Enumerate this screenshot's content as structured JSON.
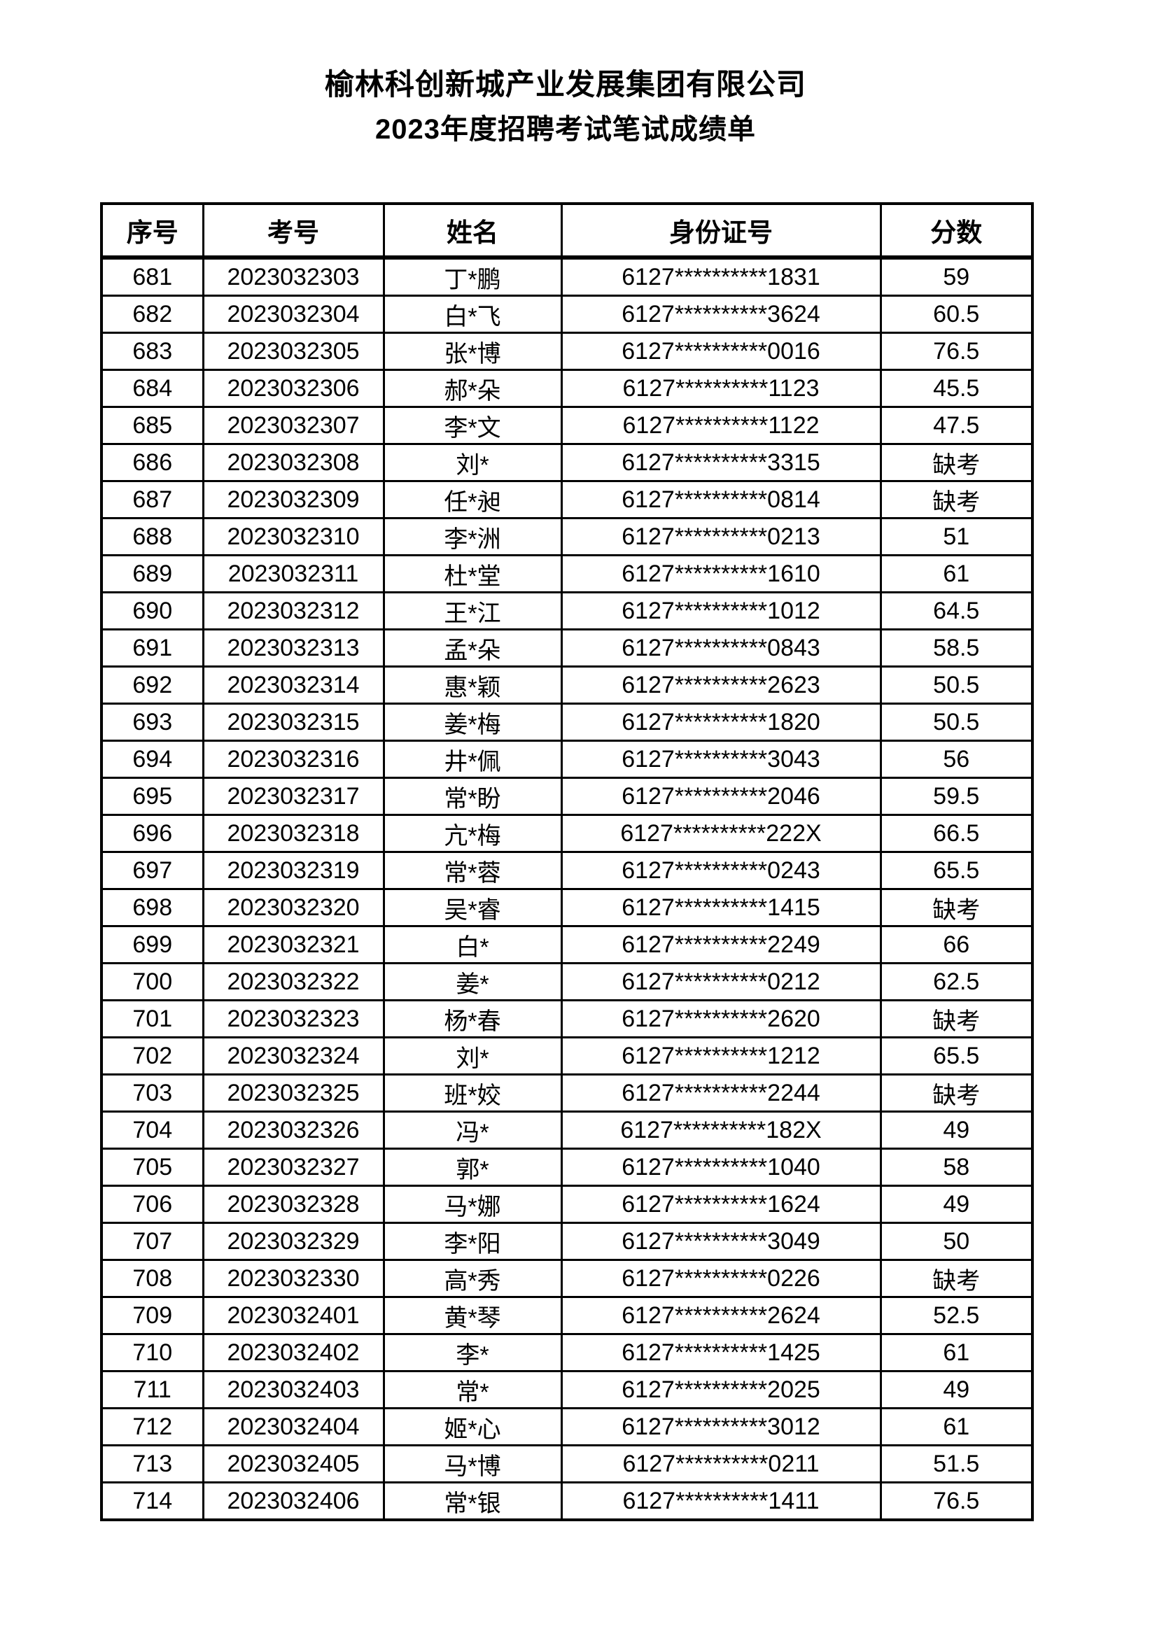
{
  "page": {
    "title": "榆林科创新城产业发展集团有限公司",
    "subtitle": "2023年度招聘考试笔试成绩单"
  },
  "colors": {
    "text": "#000000",
    "border": "#000000",
    "background": "#ffffff"
  },
  "table": {
    "columns": [
      "序号",
      "考号",
      "姓名",
      "身份证号",
      "分数"
    ],
    "absent_label": "缺考",
    "rows": [
      [
        "681",
        "2023032303",
        "丁*鹏",
        "6127**********1831",
        "59"
      ],
      [
        "682",
        "2023032304",
        "白*飞",
        "6127**********3624",
        "60.5"
      ],
      [
        "683",
        "2023032305",
        "张*博",
        "6127**********0016",
        "76.5"
      ],
      [
        "684",
        "2023032306",
        "郝*朵",
        "6127**********1123",
        "45.5"
      ],
      [
        "685",
        "2023032307",
        "李*文",
        "6127**********1122",
        "47.5"
      ],
      [
        "686",
        "2023032308",
        "刘*",
        "6127**********3315",
        "缺考"
      ],
      [
        "687",
        "2023032309",
        "任*昶",
        "6127**********0814",
        "缺考"
      ],
      [
        "688",
        "2023032310",
        "李*洲",
        "6127**********0213",
        "51"
      ],
      [
        "689",
        "2023032311",
        "杜*堂",
        "6127**********1610",
        "61"
      ],
      [
        "690",
        "2023032312",
        "王*江",
        "6127**********1012",
        "64.5"
      ],
      [
        "691",
        "2023032313",
        "孟*朵",
        "6127**********0843",
        "58.5"
      ],
      [
        "692",
        "2023032314",
        "惠*颖",
        "6127**********2623",
        "50.5"
      ],
      [
        "693",
        "2023032315",
        "姜*梅",
        "6127**********1820",
        "50.5"
      ],
      [
        "694",
        "2023032316",
        "井*佩",
        "6127**********3043",
        "56"
      ],
      [
        "695",
        "2023032317",
        "常*盼",
        "6127**********2046",
        "59.5"
      ],
      [
        "696",
        "2023032318",
        "亢*梅",
        "6127**********222X",
        "66.5"
      ],
      [
        "697",
        "2023032319",
        "常*蓉",
        "6127**********0243",
        "65.5"
      ],
      [
        "698",
        "2023032320",
        "吴*睿",
        "6127**********1415",
        "缺考"
      ],
      [
        "699",
        "2023032321",
        "白*",
        "6127**********2249",
        "66"
      ],
      [
        "700",
        "2023032322",
        "姜*",
        "6127**********0212",
        "62.5"
      ],
      [
        "701",
        "2023032323",
        "杨*春",
        "6127**********2620",
        "缺考"
      ],
      [
        "702",
        "2023032324",
        "刘*",
        "6127**********1212",
        "65.5"
      ],
      [
        "703",
        "2023032325",
        "班*姣",
        "6127**********2244",
        "缺考"
      ],
      [
        "704",
        "2023032326",
        "冯*",
        "6127**********182X",
        "49"
      ],
      [
        "705",
        "2023032327",
        "郭*",
        "6127**********1040",
        "58"
      ],
      [
        "706",
        "2023032328",
        "马*娜",
        "6127**********1624",
        "49"
      ],
      [
        "707",
        "2023032329",
        "李*阳",
        "6127**********3049",
        "50"
      ],
      [
        "708",
        "2023032330",
        "高*秀",
        "6127**********0226",
        "缺考"
      ],
      [
        "709",
        "2023032401",
        "黄*琴",
        "6127**********2624",
        "52.5"
      ],
      [
        "710",
        "2023032402",
        "李*",
        "6127**********1425",
        "61"
      ],
      [
        "711",
        "2023032403",
        "常*",
        "6127**********2025",
        "49"
      ],
      [
        "712",
        "2023032404",
        "姬*心",
        "6127**********3012",
        "61"
      ],
      [
        "713",
        "2023032405",
        "马*博",
        "6127**********0211",
        "51.5"
      ],
      [
        "714",
        "2023032406",
        "常*银",
        "6127**********1411",
        "76.5"
      ]
    ]
  }
}
